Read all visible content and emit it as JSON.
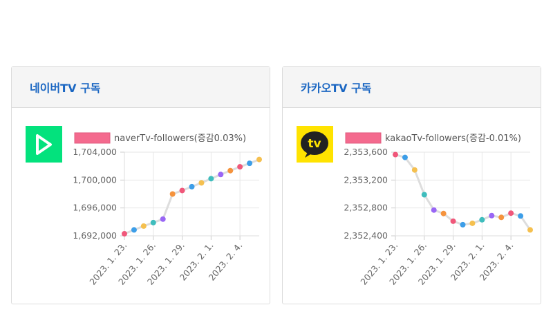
{
  "colors": {
    "title": "#1a66c2",
    "point_palette": [
      "#f0577a",
      "#3d9ee8",
      "#f5c04f",
      "#3fbdbd",
      "#9966f5",
      "#f5933d"
    ],
    "line": "#dddddd",
    "legend_swatch": "#f46a8e",
    "naver_logo": "#03e27d",
    "kakao_logo": "#ffe300"
  },
  "cards": [
    {
      "title": "네이버TV 구독",
      "logo_icon": "naver-tv-play-icon",
      "chart_data": {
        "type": "line",
        "legend": "naverTv-followers(증감0.03%)",
        "series": [
          {
            "name": "naverTv-followers(증감0.03%)",
            "values": [
              1692300,
              1692850,
              1693400,
              1693900,
              1694400,
              1698000,
              1698500,
              1699050,
              1699600,
              1700200,
              1700800,
              1701350,
              1701900,
              1702400,
              1702950
            ]
          }
        ],
        "x_tick_labels": [
          "2023. 1. 23.",
          "2023. 1. 26.",
          "2023. 1. 29.",
          "2023. 2. 1.",
          "2023. 2. 4."
        ],
        "y_tick_labels": [
          "1,704,000",
          "1,700,000",
          "1,696,000",
          "1,692,000"
        ],
        "ylim": [
          1692000,
          1704000
        ]
      }
    },
    {
      "title": "카카오TV 구독",
      "logo_icon": "kakao-tv-logo-icon",
      "logo_text": "tv",
      "chart_data": {
        "type": "line",
        "legend": "kakaoTv-followers(증감-0.01%)",
        "series": [
          {
            "name": "kakaoTv-followers(증감-0.01%)",
            "values": [
              2353565,
              2353525,
              2353345,
              2352990,
              2352770,
              2352720,
              2352610,
              2352560,
              2352580,
              2352630,
              2352690,
              2352665,
              2352725,
              2352685,
              2352485
            ]
          }
        ],
        "x_tick_labels": [
          "2023. 1. 23.",
          "2023. 1. 26.",
          "2023. 1. 29.",
          "2023. 2. 1.",
          "2023. 2. 4."
        ],
        "y_tick_labels": [
          "2,353,600",
          "2,353,200",
          "2,352,800",
          "2,352,400"
        ],
        "ylim": [
          2352400,
          2353600
        ]
      }
    }
  ]
}
